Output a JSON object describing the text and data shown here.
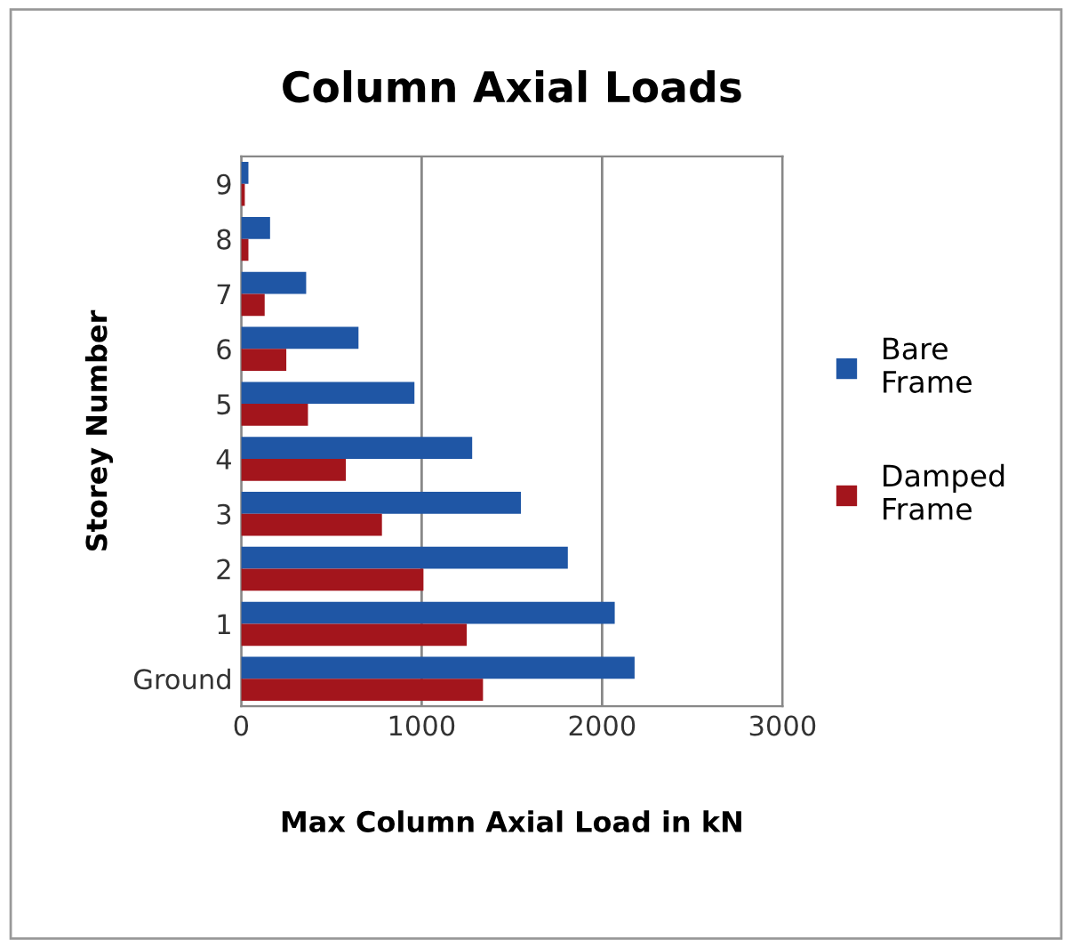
{
  "chart_data": {
    "type": "bar",
    "orientation": "horizontal",
    "title": "Column Axial Loads",
    "xlabel": "Max Column Axial Load in kN",
    "ylabel": "Storey Number",
    "categories": [
      "9",
      "8",
      "7",
      "6",
      "5",
      "4",
      "3",
      "2",
      "1",
      "Ground"
    ],
    "series": [
      {
        "name": "Bare Frame",
        "color": "#1f56a5",
        "values": [
          40,
          160,
          360,
          650,
          960,
          1280,
          1550,
          1810,
          2070,
          2180
        ]
      },
      {
        "name": "Damped Frame",
        "color": "#a3151c",
        "values": [
          20,
          40,
          130,
          250,
          370,
          580,
          780,
          1010,
          1250,
          1340
        ]
      }
    ],
    "xlim": [
      0,
      3000
    ],
    "xticks": [
      0,
      1000,
      2000,
      3000
    ],
    "grid": "x",
    "legend": "right"
  }
}
